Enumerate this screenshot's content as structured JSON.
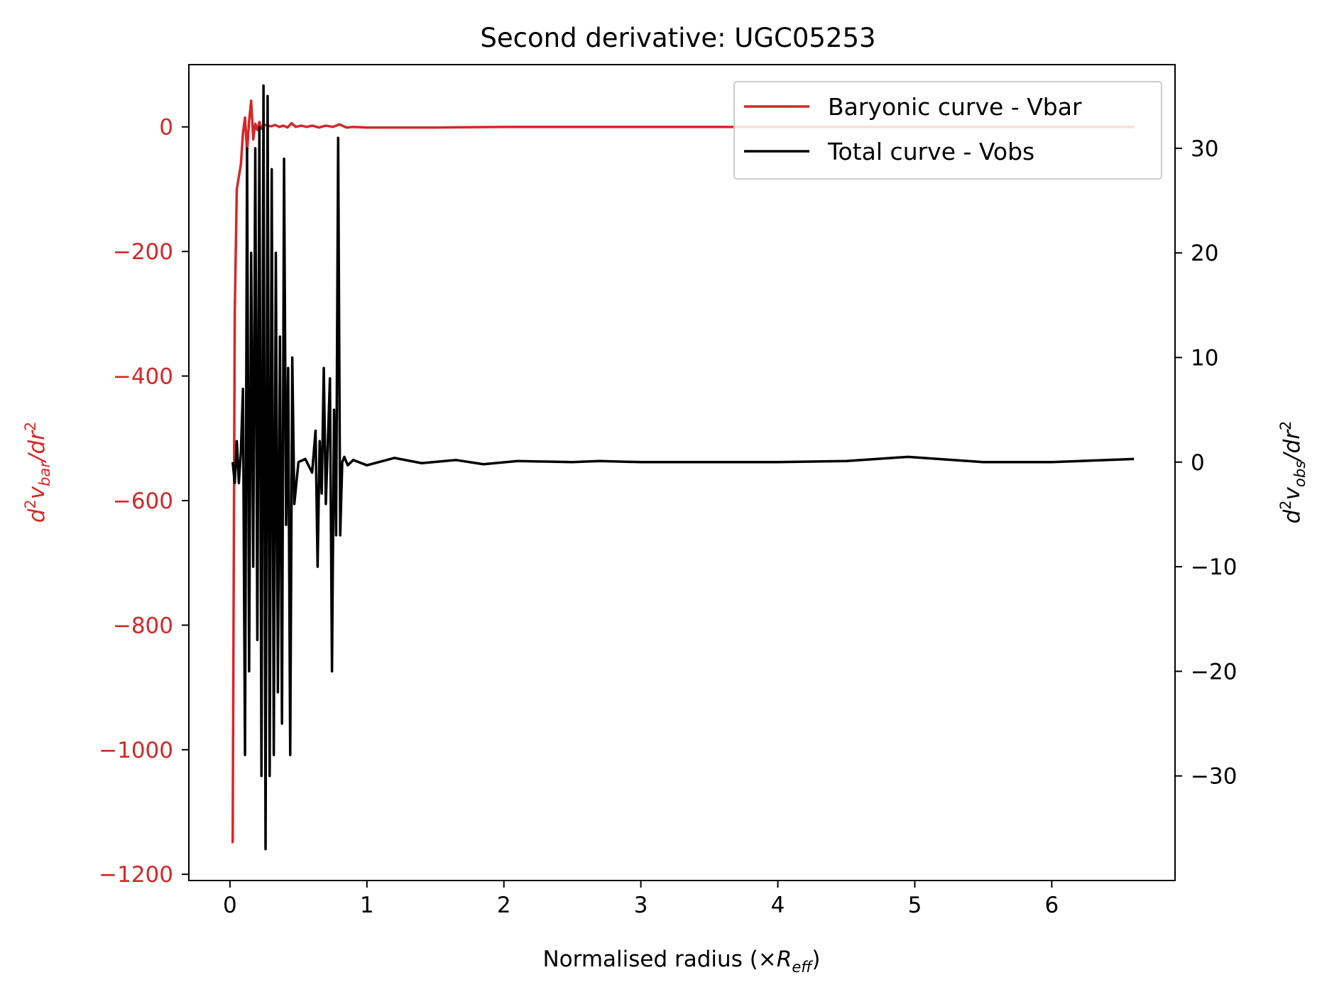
{
  "chart_data": {
    "type": "line",
    "title": "Second derivative: UGC05253",
    "xlabel": {
      "main": "Normalised radius (×",
      "sym": "R",
      "sub": "eff",
      "close": ")"
    },
    "ylabel_left": {
      "pre": "d",
      "sup1": "2",
      "var": "v",
      "sub": "bar",
      "mid": "/dr",
      "sup2": "2"
    },
    "ylabel_right": {
      "pre": "d",
      "sup1": "2",
      "var": "v",
      "sub": "obs",
      "mid": "/dr",
      "sup2": "2"
    },
    "xlim": [
      -0.3,
      6.9
    ],
    "ylim_left": [
      -1210,
      100
    ],
    "ylim_right": [
      -40,
      38
    ],
    "x_ticks": [
      0,
      1,
      2,
      3,
      4,
      5,
      6
    ],
    "x_tick_labels": [
      "0",
      "1",
      "2",
      "3",
      "4",
      "5",
      "6"
    ],
    "y_left_ticks": [
      0,
      -200,
      -400,
      -600,
      -800,
      -1000,
      -1200
    ],
    "y_left_tick_labels": [
      "0",
      "−200",
      "−400",
      "−600",
      "−800",
      "−1000",
      "−1200"
    ],
    "y_right_ticks": [
      30,
      20,
      10,
      0,
      -10,
      -20,
      -30
    ],
    "y_right_tick_labels": [
      "30",
      "20",
      "10",
      "0",
      "−10",
      "−20",
      "−30"
    ],
    "grid": false,
    "legend_position": "top-right",
    "series": [
      {
        "name": "Baryonic curve - Vbar",
        "axis": "left",
        "color": "#d62728",
        "x": [
          0.02,
          0.035,
          0.05,
          0.065,
          0.08,
          0.095,
          0.11,
          0.125,
          0.14,
          0.155,
          0.17,
          0.185,
          0.2,
          0.215,
          0.23,
          0.25,
          0.27,
          0.3,
          0.33,
          0.36,
          0.39,
          0.42,
          0.45,
          0.48,
          0.52,
          0.56,
          0.6,
          0.65,
          0.7,
          0.75,
          0.8,
          0.85,
          0.9,
          1.0,
          1.5,
          2.0,
          3.0,
          4.0,
          5.0,
          6.0,
          6.6
        ],
        "y": [
          -1150,
          -300,
          -100,
          -80,
          -60,
          -10,
          15,
          -40,
          10,
          42,
          -20,
          5,
          -5,
          8,
          -3,
          4,
          2,
          1,
          3,
          0,
          2,
          -1,
          6,
          0,
          2,
          0,
          2,
          -1,
          2,
          0,
          4,
          -1,
          0,
          -1,
          -1,
          0,
          0,
          0,
          0,
          0,
          0
        ]
      },
      {
        "name": "Total curve - Vobs",
        "axis": "right",
        "color": "#000000",
        "x": [
          0.02,
          0.035,
          0.05,
          0.065,
          0.08,
          0.095,
          0.11,
          0.125,
          0.14,
          0.155,
          0.17,
          0.185,
          0.2,
          0.215,
          0.23,
          0.245,
          0.26,
          0.275,
          0.29,
          0.305,
          0.32,
          0.335,
          0.35,
          0.365,
          0.38,
          0.395,
          0.41,
          0.425,
          0.44,
          0.455,
          0.47,
          0.5,
          0.55,
          0.6,
          0.625,
          0.64,
          0.655,
          0.67,
          0.685,
          0.7,
          0.715,
          0.73,
          0.745,
          0.76,
          0.775,
          0.79,
          0.805,
          0.82,
          0.835,
          0.86,
          0.9,
          1.0,
          1.2,
          1.4,
          1.65,
          1.85,
          2.1,
          2.5,
          2.7,
          3.0,
          3.5,
          4.0,
          4.5,
          4.95,
          5.5,
          6.0,
          6.6
        ],
        "y": [
          0,
          -2,
          2,
          -2,
          1,
          7,
          -28,
          30,
          -20,
          20,
          -10,
          30,
          -17,
          32,
          -30,
          36,
          -37,
          35,
          -30,
          28,
          -28,
          20,
          -22,
          12,
          -25,
          29,
          -6,
          9,
          -28,
          10,
          -4,
          0,
          0.3,
          -1,
          3,
          -10,
          2,
          -3,
          9,
          -4,
          2,
          8,
          -20,
          5,
          -7,
          31,
          -7,
          0,
          0.5,
          -0.3,
          0.2,
          -0.3,
          0.4,
          -0.1,
          0.2,
          -0.2,
          0.1,
          0,
          0.1,
          0,
          0,
          0,
          0.1,
          0.5,
          0,
          0,
          0.3
        ]
      }
    ]
  }
}
